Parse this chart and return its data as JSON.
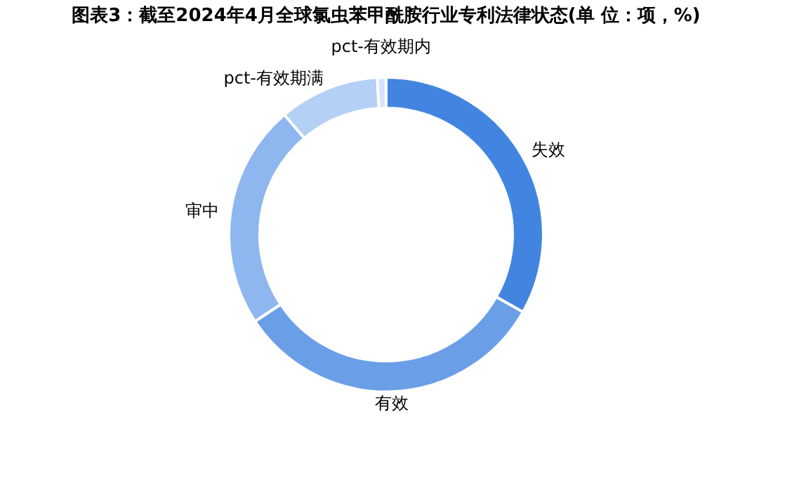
{
  "chart_data": {
    "type": "donut",
    "title": "图表3：截至2024年4月全球氯虫苯甲酰胺行业专利法律状态(单 位：项，%)",
    "categories": [
      "失效",
      "有效",
      "审中",
      "pct-有效期满",
      "pct-有效期内"
    ],
    "values": [
      33.2,
      32.5,
      23.1,
      10.3,
      0.9
    ],
    "colors": [
      "#4285e0",
      "#6a9fe8",
      "#8fb7ef",
      "#b5d0f5",
      "#d4e4fa"
    ],
    "legend": false
  }
}
